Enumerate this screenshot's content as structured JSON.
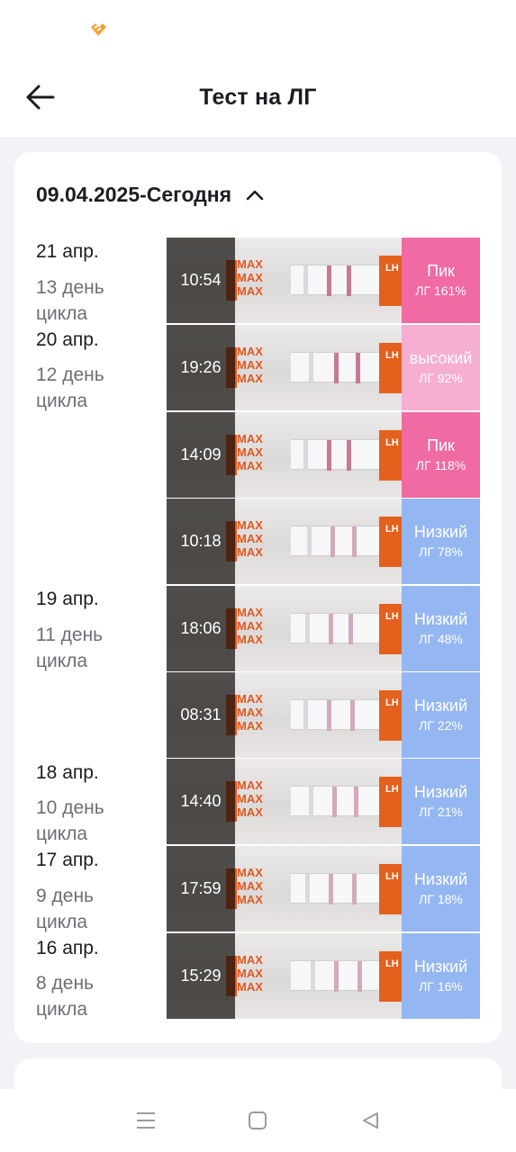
{
  "header": {
    "title": "Тест на ЛГ"
  },
  "range": {
    "label": "09.04.2025-Сегодня"
  },
  "colors": {
    "peak": "#f06aa3",
    "high": "#f6aed1",
    "low": "#95b7f1",
    "marker": "#e2581e"
  },
  "days": [
    {
      "date": "21 апр.",
      "cycle_day": "13 день цикла"
    },
    {
      "date": "20 апр.",
      "cycle_day": "12 день цикла"
    },
    {
      "date": "19 апр.",
      "cycle_day": "11 день цикла"
    },
    {
      "date": "18 апр.",
      "cycle_day": "10 день цикла"
    },
    {
      "date": "17 апр.",
      "cycle_day": "9 день цикла"
    },
    {
      "date": "16 апр.",
      "cycle_day": "8 день цикла"
    }
  ],
  "tests": [
    {
      "time": "10:54",
      "status": "Пик",
      "value": "ЛГ 161%",
      "level": "peak",
      "strip_text": "MAX",
      "end_text": "LH"
    },
    {
      "time": "19:26",
      "status": "высокий",
      "value": "ЛГ 92%",
      "level": "high",
      "strip_text": "MAX",
      "end_text": "LH"
    },
    {
      "time": "14:09",
      "status": "Пик",
      "value": "ЛГ 118%",
      "level": "peak",
      "strip_text": "MAX",
      "end_text": "LH"
    },
    {
      "time": "10:18",
      "status": "Низкий",
      "value": "ЛГ 78%",
      "level": "low",
      "strip_text": "MAX",
      "end_text": "LH"
    },
    {
      "time": "18:06",
      "status": "Низкий",
      "value": "ЛГ 48%",
      "level": "low",
      "strip_text": "MAX",
      "end_text": "LH"
    },
    {
      "time": "08:31",
      "status": "Низкий",
      "value": "ЛГ 22%",
      "level": "low",
      "strip_text": "MAX",
      "end_text": "LH"
    },
    {
      "time": "14:40",
      "status": "Низкий",
      "value": "ЛГ 21%",
      "level": "low",
      "strip_text": "MAX",
      "end_text": "LH"
    },
    {
      "time": "17:59",
      "status": "Низкий",
      "value": "ЛГ 18%",
      "level": "low",
      "strip_text": "MAX",
      "end_text": "LH"
    },
    {
      "time": "15:29",
      "status": "Низкий",
      "value": "ЛГ 16%",
      "level": "low",
      "strip_text": "MAX",
      "end_text": "LH"
    }
  ],
  "icons": {
    "status": "heart-logo-icon",
    "back": "arrow-left-icon",
    "chevron": "chevron-up-icon",
    "nav": [
      "menu-icon",
      "home-square-icon",
      "back-triangle-icon"
    ]
  }
}
